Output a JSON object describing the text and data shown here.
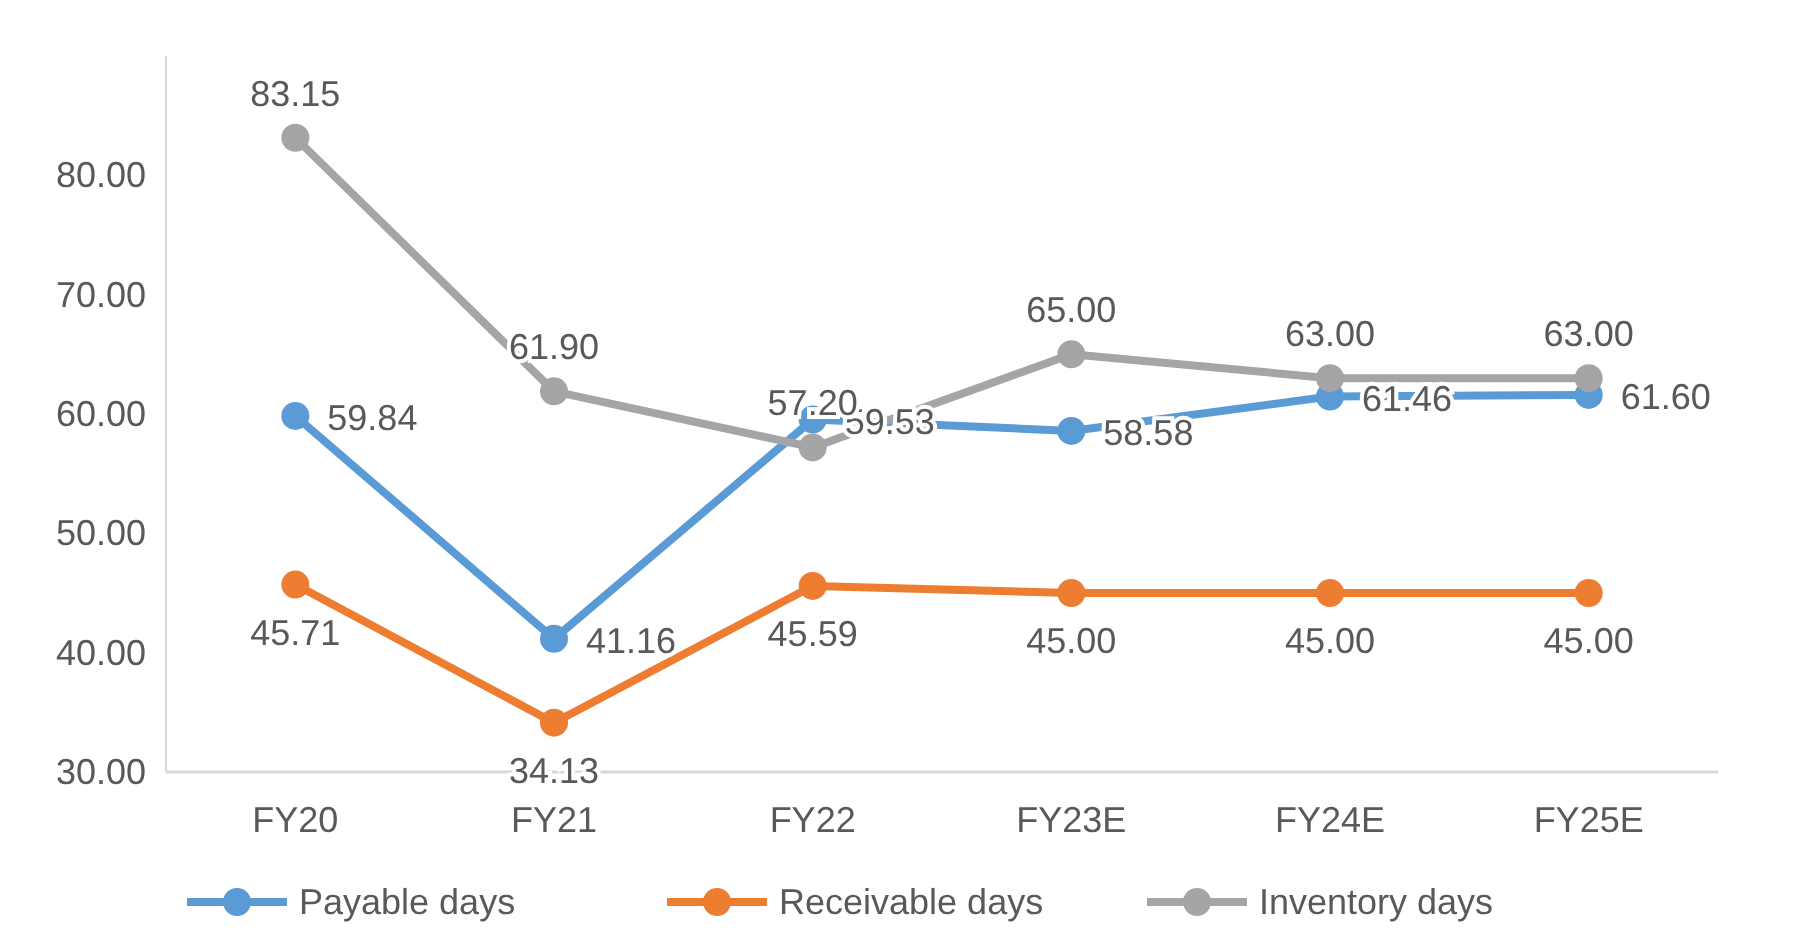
{
  "chart_data": {
    "type": "line",
    "categories": [
      "FY20",
      "FY21",
      "FY22",
      "FY23E",
      "FY24E",
      "FY25E"
    ],
    "series": [
      {
        "name": "Payable days",
        "color": "#5b9bd5",
        "values": [
          59.84,
          41.16,
          59.53,
          58.58,
          61.46,
          61.6
        ],
        "value_labels": [
          "59.84",
          "41.16",
          "59.53",
          "58.58",
          "61.46",
          "61.60"
        ]
      },
      {
        "name": "Receivable days",
        "color": "#ed7d31",
        "values": [
          45.71,
          34.13,
          45.59,
          45,
          45,
          45
        ],
        "value_labels": [
          "45.71",
          "34.13",
          "45.59",
          "45.00",
          "45.00",
          "45.00"
        ]
      },
      {
        "name": "Inventory days",
        "color": "#a5a5a5",
        "values": [
          83.15,
          61.9,
          57.2,
          65,
          63,
          63
        ],
        "value_labels": [
          "83.15",
          "61.90",
          "57.20",
          "65.00",
          "63.00",
          "63.00"
        ]
      }
    ],
    "ylim": [
      30,
      90
    ],
    "yticks": [
      {
        "value": 30,
        "label": "30.00"
      },
      {
        "value": 40,
        "label": "40.00"
      },
      {
        "value": 50,
        "label": "50.00"
      },
      {
        "value": 60,
        "label": "60.00"
      },
      {
        "value": 70,
        "label": "70.00"
      },
      {
        "value": 80,
        "label": "80.00"
      }
    ],
    "marker": "circle",
    "legend": "bottom",
    "grid": false
  }
}
